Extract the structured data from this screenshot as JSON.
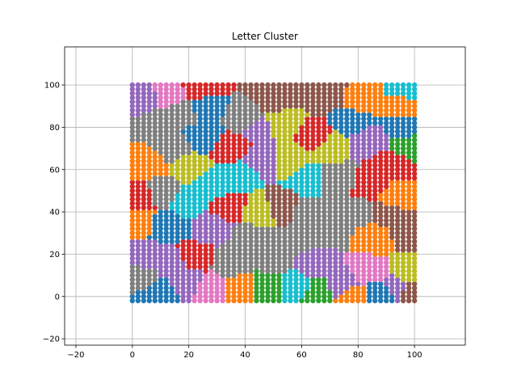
{
  "chart_data": {
    "type": "scatter",
    "title": "Letter Cluster",
    "xlabel": "",
    "ylabel": "",
    "xlim": [
      -24,
      118
    ],
    "ylim": [
      -23,
      118
    ],
    "x_ticks": [
      -20,
      0,
      20,
      40,
      60,
      80,
      100
    ],
    "y_ticks": [
      -20,
      0,
      20,
      40,
      60,
      80,
      100
    ],
    "x_tick_labels": [
      "−20",
      "0",
      "20",
      "40",
      "60",
      "80",
      "100"
    ],
    "y_tick_labels": [
      "−20",
      "0",
      "20",
      "40",
      "60",
      "80",
      "100"
    ],
    "grid": true,
    "legend": "none",
    "data_extent": {
      "x": [
        0,
        100
      ],
      "y": [
        -2,
        100
      ]
    },
    "cluster_colors": [
      "#1f77b4",
      "#ff7f0e",
      "#2ca02c",
      "#d62728",
      "#9467bd",
      "#8c564b",
      "#e377c2",
      "#7f7f7f",
      "#bcbd22",
      "#17becf"
    ],
    "cluster_seeds": [
      {
        "x": 3,
        "y": 93,
        "c": 4
      },
      {
        "x": 14,
        "y": 95,
        "c": 6
      },
      {
        "x": 24,
        "y": 98,
        "c": 3
      },
      {
        "x": 25,
        "y": 90,
        "c": 0
      },
      {
        "x": 8,
        "y": 82,
        "c": 7
      },
      {
        "x": 18,
        "y": 88,
        "c": 7
      },
      {
        "x": 50,
        "y": 93,
        "c": 5
      },
      {
        "x": 68,
        "y": 96,
        "c": 5
      },
      {
        "x": 40,
        "y": 85,
        "c": 7
      },
      {
        "x": 52,
        "y": 82,
        "c": 8
      },
      {
        "x": 45,
        "y": 80,
        "c": 4
      },
      {
        "x": 66,
        "y": 75,
        "c": 3
      },
      {
        "x": 78,
        "y": 82,
        "c": 0
      },
      {
        "x": 82,
        "y": 93,
        "c": 1
      },
      {
        "x": 96,
        "y": 90,
        "c": 1
      },
      {
        "x": 98,
        "y": 98,
        "c": 9
      },
      {
        "x": 97,
        "y": 80,
        "c": 0
      },
      {
        "x": 99,
        "y": 72,
        "c": 2
      },
      {
        "x": 83,
        "y": 74,
        "c": 4
      },
      {
        "x": 91,
        "y": 62,
        "c": 3
      },
      {
        "x": 85,
        "y": 52,
        "c": 3
      },
      {
        "x": 5,
        "y": 62,
        "c": 1
      },
      {
        "x": 15,
        "y": 70,
        "c": 7
      },
      {
        "x": 20,
        "y": 62,
        "c": 8
      },
      {
        "x": 25,
        "y": 75,
        "c": 0
      },
      {
        "x": 35,
        "y": 70,
        "c": 3
      },
      {
        "x": 45,
        "y": 65,
        "c": 4
      },
      {
        "x": 55,
        "y": 65,
        "c": 8
      },
      {
        "x": 63,
        "y": 55,
        "c": 9
      },
      {
        "x": 70,
        "y": 72,
        "c": 8
      },
      {
        "x": 28,
        "y": 52,
        "c": 9
      },
      {
        "x": 37,
        "y": 58,
        "c": 9
      },
      {
        "x": 3,
        "y": 48,
        "c": 3
      },
      {
        "x": 10,
        "y": 50,
        "c": 7
      },
      {
        "x": 20,
        "y": 45,
        "c": 9
      },
      {
        "x": 34,
        "y": 42,
        "c": 3
      },
      {
        "x": 45,
        "y": 40,
        "c": 8
      },
      {
        "x": 53,
        "y": 42,
        "c": 5
      },
      {
        "x": 62,
        "y": 40,
        "c": 7
      },
      {
        "x": 72,
        "y": 55,
        "c": 7
      },
      {
        "x": 80,
        "y": 40,
        "c": 7
      },
      {
        "x": 89,
        "y": 40,
        "c": 5
      },
      {
        "x": 97,
        "y": 30,
        "c": 5
      },
      {
        "x": 92,
        "y": 47,
        "c": 1
      },
      {
        "x": 2,
        "y": 35,
        "c": 1
      },
      {
        "x": 12,
        "y": 33,
        "c": 0
      },
      {
        "x": 28,
        "y": 33,
        "c": 4
      },
      {
        "x": 42,
        "y": 28,
        "c": 7
      },
      {
        "x": 60,
        "y": 28,
        "c": 7
      },
      {
        "x": 70,
        "y": 32,
        "c": 7
      },
      {
        "x": 86,
        "y": 28,
        "c": 1
      },
      {
        "x": 5,
        "y": 20,
        "c": 4
      },
      {
        "x": 15,
        "y": 15,
        "c": 4
      },
      {
        "x": 22,
        "y": 18,
        "c": 3
      },
      {
        "x": 35,
        "y": 15,
        "c": 7
      },
      {
        "x": 50,
        "y": 18,
        "c": 7
      },
      {
        "x": 65,
        "y": 15,
        "c": 4
      },
      {
        "x": 74,
        "y": 5,
        "c": 4
      },
      {
        "x": 85,
        "y": 12,
        "c": 6
      },
      {
        "x": 97,
        "y": 12,
        "c": 8
      },
      {
        "x": 93,
        "y": 5,
        "c": 4
      },
      {
        "x": 3,
        "y": 8,
        "c": 7
      },
      {
        "x": 8,
        "y": 2,
        "c": 0
      },
      {
        "x": 20,
        "y": 8,
        "c": 4
      },
      {
        "x": 28,
        "y": 5,
        "c": 6
      },
      {
        "x": 38,
        "y": 5,
        "c": 1
      },
      {
        "x": 48,
        "y": 5,
        "c": 2
      },
      {
        "x": 58,
        "y": 5,
        "c": 9
      },
      {
        "x": 66,
        "y": 2,
        "c": 2
      },
      {
        "x": 78,
        "y": 0,
        "c": 1
      },
      {
        "x": 99,
        "y": 3,
        "c": 5
      },
      {
        "x": 88,
        "y": 2,
        "c": 0
      }
    ]
  }
}
